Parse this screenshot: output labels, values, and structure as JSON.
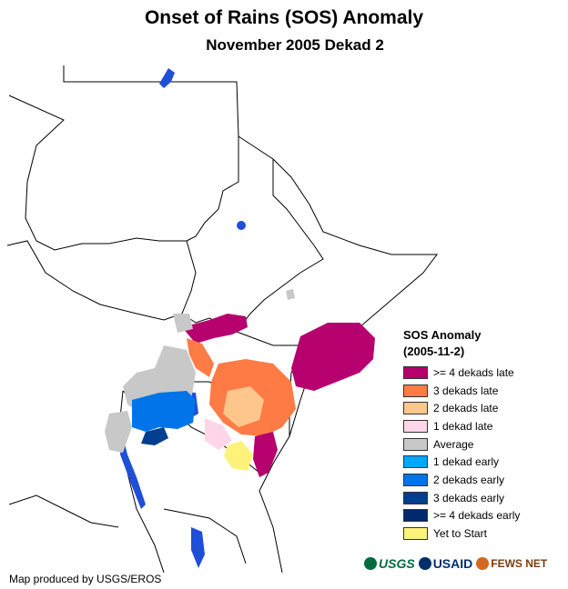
{
  "header": {
    "title": "Onset of Rains (SOS) Anomaly",
    "subtitle": "November 2005 Dekad 2"
  },
  "legend": {
    "title": "SOS Anomaly",
    "date": "(2005-11-2)",
    "items": [
      {
        "label": ">= 4 dekads late",
        "color": "#b5006e"
      },
      {
        "label": "3 dekads late",
        "color": "#ff7b45"
      },
      {
        "label": "2 dekads late",
        "color": "#ffc68c"
      },
      {
        "label": "1 dekad late",
        "color": "#ffd6e8"
      },
      {
        "label": "Average",
        "color": "#c8c8c8"
      },
      {
        "label": "1 dekad early",
        "color": "#00a6ff"
      },
      {
        "label": "2 dekads early",
        "color": "#0074e8"
      },
      {
        "label": "3 dekads early",
        "color": "#003f8f"
      },
      {
        "label": ">= 4 dekads early",
        "color": "#002a6e"
      },
      {
        "label": "Yet to Start",
        "color": "#fff27a"
      }
    ]
  },
  "footer": {
    "credit": "Map produced by USGS/EROS",
    "logos": [
      "USGS",
      "USAID",
      "FEWS NET"
    ]
  }
}
